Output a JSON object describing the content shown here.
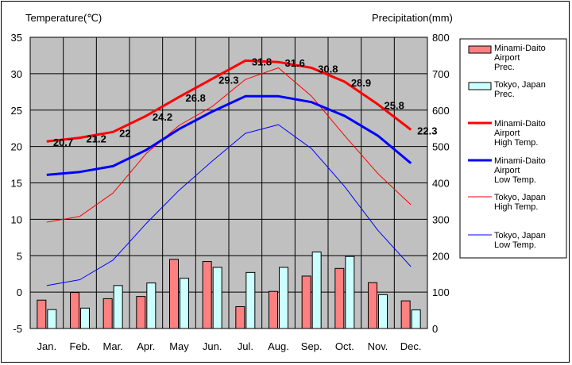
{
  "chart_data": {
    "type": "bar+line",
    "ylabel_left": "Temperature(℃)",
    "ylabel_right": "Precipitation(mm)",
    "categories": [
      "Jan.",
      "Feb.",
      "Mar.",
      "Apr.",
      "May",
      "Jun.",
      "Jul.",
      "Aug.",
      "Sep.",
      "Oct.",
      "Nov.",
      "Dec."
    ],
    "ylim_left": [
      -5,
      35
    ],
    "yticks_left": [
      "35",
      "30",
      "25",
      "20",
      "15",
      "10",
      "5",
      "0",
      "-5"
    ],
    "ylim_right": [
      0,
      800
    ],
    "yticks_right": [
      "800",
      "700",
      "600",
      "500",
      "400",
      "300",
      "200",
      "100",
      "0"
    ],
    "grid": true,
    "plot_background": "#c0c0c0",
    "legend_position": "right",
    "bar_series": [
      {
        "legend": [
          "Minami-Daito",
          "Airport",
          "Prec."
        ],
        "color": "#ff8080",
        "values": [
          78,
          99,
          82,
          88,
          190,
          184,
          60,
          102,
          144,
          165,
          126,
          76
        ]
      },
      {
        "legend": [
          "Tokyo, Japan",
          "Prec."
        ],
        "color": "#ccffff",
        "values": [
          52,
          56,
          118,
          125,
          138,
          168,
          154,
          168,
          210,
          198,
          93,
          51
        ]
      }
    ],
    "line_series": [
      {
        "legend": [
          "Minami-Daito",
          "Airport",
          "High Temp."
        ],
        "color": "#ff0000",
        "width": 3,
        "values": [
          20.7,
          21.2,
          22,
          24.2,
          26.8,
          29.3,
          31.8,
          31.6,
          30.8,
          28.9,
          25.8,
          22.3
        ],
        "labels": [
          "20.7",
          "21.2",
          "22",
          "24.2",
          "26.8",
          "29.3",
          "31.8",
          "31.6",
          "30.8",
          "28.9",
          "25.8",
          "22.3"
        ]
      },
      {
        "legend": [
          "Minami-Daito",
          "Airport",
          "Low Temp."
        ],
        "color": "#0000ff",
        "width": 3,
        "values": [
          16.1,
          16.5,
          17.3,
          19.5,
          22.4,
          24.8,
          26.9,
          26.9,
          26.1,
          24.2,
          21.5,
          17.7
        ]
      },
      {
        "legend": [
          "Tokyo, Japan",
          "High Temp."
        ],
        "color": "#ff0000",
        "width": 1,
        "values": [
          9.6,
          10.4,
          13.6,
          19.0,
          22.9,
          25.5,
          29.2,
          30.8,
          26.9,
          21.5,
          16.3,
          12.0
        ]
      },
      {
        "legend": [
          "Tokyo, Japan",
          "Low Temp."
        ],
        "color": "#0000ff",
        "width": 1,
        "values": [
          0.9,
          1.7,
          4.4,
          9.4,
          14.0,
          18.0,
          21.8,
          23.0,
          19.7,
          14.5,
          8.5,
          3.5
        ]
      }
    ]
  }
}
